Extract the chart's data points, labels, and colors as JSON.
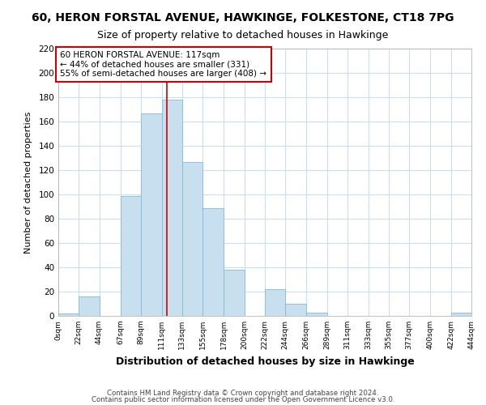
{
  "title": "60, HERON FORSTAL AVENUE, HAWKINGE, FOLKESTONE, CT18 7PG",
  "subtitle": "Size of property relative to detached houses in Hawkinge",
  "xlabel": "Distribution of detached houses by size in Hawkinge",
  "ylabel": "Number of detached properties",
  "bar_edges": [
    0,
    22,
    44,
    67,
    89,
    111,
    133,
    155,
    178,
    200,
    222,
    244,
    266,
    289,
    311,
    333,
    355,
    377,
    400,
    422,
    444
  ],
  "bar_heights": [
    2,
    16,
    0,
    99,
    167,
    178,
    127,
    89,
    38,
    0,
    22,
    10,
    3,
    0,
    0,
    0,
    0,
    0,
    0,
    3
  ],
  "bar_color": "#c8dff0",
  "bar_edgecolor": "#8ab8d8",
  "grid_color": "#c8dff0",
  "vline_x": 117,
  "vline_color": "#cc0000",
  "ylim": [
    0,
    220
  ],
  "yticks": [
    0,
    20,
    40,
    60,
    80,
    100,
    120,
    140,
    160,
    180,
    200,
    220
  ],
  "xtick_labels": [
    "0sqm",
    "22sqm",
    "44sqm",
    "67sqm",
    "89sqm",
    "111sqm",
    "133sqm",
    "155sqm",
    "178sqm",
    "200sqm",
    "222sqm",
    "244sqm",
    "266sqm",
    "289sqm",
    "311sqm",
    "333sqm",
    "355sqm",
    "377sqm",
    "400sqm",
    "422sqm",
    "444sqm"
  ],
  "annotation_title": "60 HERON FORSTAL AVENUE: 117sqm",
  "annotation_line1": "← 44% of detached houses are smaller (331)",
  "annotation_line2": "55% of semi-detached houses are larger (408) →",
  "annotation_box_color": "white",
  "annotation_box_edgecolor": "#cc0000",
  "footer1": "Contains HM Land Registry data © Crown copyright and database right 2024.",
  "footer2": "Contains public sector information licensed under the Open Government Licence v3.0.",
  "background_color": "white",
  "plot_bg_color": "white"
}
